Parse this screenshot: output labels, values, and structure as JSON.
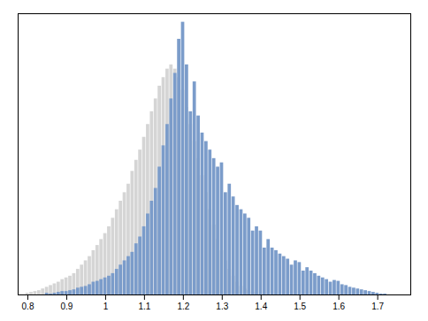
{
  "chart_data": {
    "type": "histogram",
    "bins": [
      0.795,
      0.805,
      0.815,
      0.825,
      0.835,
      0.845,
      0.855,
      0.865,
      0.875,
      0.885,
      0.895,
      0.905,
      0.915,
      0.925,
      0.935,
      0.945,
      0.955,
      0.965,
      0.975,
      0.985,
      0.995,
      1.005,
      1.015,
      1.025,
      1.035,
      1.045,
      1.055,
      1.065,
      1.075,
      1.085,
      1.095,
      1.105,
      1.115,
      1.125,
      1.135,
      1.145,
      1.155,
      1.165,
      1.175,
      1.185,
      1.195,
      1.205,
      1.215,
      1.225,
      1.235,
      1.245,
      1.255,
      1.265,
      1.275,
      1.285,
      1.295,
      1.305,
      1.315,
      1.325,
      1.335,
      1.345,
      1.355,
      1.365,
      1.375,
      1.385,
      1.395,
      1.405,
      1.415,
      1.425,
      1.435,
      1.445,
      1.455,
      1.465,
      1.475,
      1.485,
      1.495,
      1.505,
      1.515,
      1.525,
      1.535,
      1.545,
      1.555,
      1.565,
      1.575,
      1.585,
      1.595,
      1.605,
      1.615,
      1.625,
      1.635,
      1.645,
      1.655,
      1.665,
      1.675,
      1.685,
      1.695,
      1.705,
      1.715,
      1.725,
      1.735,
      1.745,
      1.755
    ],
    "series": [
      {
        "color": "#d5d5d5",
        "values": [
          2,
          3,
          4,
          5,
          7,
          9,
          11,
          13,
          15,
          18,
          20,
          22,
          25,
          30,
          35,
          40,
          45,
          52,
          58,
          65,
          72,
          80,
          90,
          100,
          110,
          120,
          130,
          145,
          158,
          170,
          185,
          200,
          215,
          230,
          245,
          255,
          265,
          270,
          265,
          255,
          240,
          220,
          200,
          180,
          160,
          140,
          120,
          100,
          82,
          65,
          52,
          40,
          30,
          22,
          15,
          10,
          7,
          5,
          3,
          2,
          1,
          0,
          0,
          0,
          0,
          0,
          0,
          0,
          0,
          0,
          0,
          0,
          0,
          0,
          0,
          0,
          0,
          0,
          0,
          0,
          0,
          0,
          0,
          0,
          0,
          0,
          0,
          0,
          0,
          0,
          0,
          0,
          0,
          0,
          0,
          0
        ]
      },
      {
        "color": "#7b9cca",
        "values": [
          0,
          0,
          0,
          0,
          0,
          2,
          1,
          2,
          3,
          4,
          4,
          5,
          6,
          8,
          9,
          10,
          12,
          15,
          16,
          18,
          20,
          22,
          25,
          30,
          35,
          40,
          45,
          50,
          60,
          68,
          80,
          95,
          110,
          125,
          150,
          175,
          200,
          230,
          260,
          300,
          320,
          270,
          215,
          250,
          210,
          190,
          180,
          170,
          160,
          150,
          155,
          120,
          130,
          115,
          105,
          100,
          95,
          90,
          75,
          80,
          75,
          55,
          65,
          55,
          52,
          48,
          45,
          42,
          35,
          40,
          38,
          28,
          32,
          28,
          25,
          22,
          20,
          18,
          15,
          17,
          16,
          12,
          11,
          9,
          8,
          7,
          6,
          5,
          4,
          3,
          2,
          1,
          1,
          0,
          0,
          0
        ]
      }
    ],
    "xlim": [
      0.775,
      1.785
    ],
    "ylim": [
      0,
      330
    ],
    "xticks": [
      0.8,
      0.9,
      1,
      1.1,
      1.2,
      1.3,
      1.4,
      1.5,
      1.6,
      1.7
    ],
    "tick_labels": "x"
  }
}
